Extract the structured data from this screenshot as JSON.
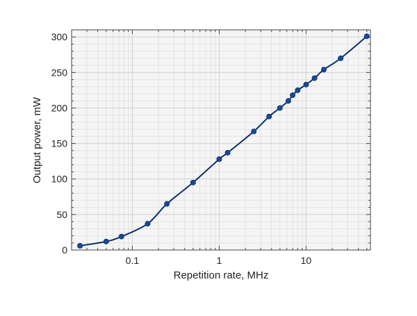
{
  "chart_data": {
    "type": "line",
    "title": "",
    "xlabel": "Repetition rate, MHz",
    "ylabel": "Output power, mW",
    "x_scale": "log",
    "xlim": [
      0.02,
      55
    ],
    "ylim": [
      0,
      310
    ],
    "x_ticks": [
      {
        "value": 0.1,
        "label": "0.1"
      },
      {
        "value": 1,
        "label": "1"
      },
      {
        "value": 10,
        "label": "10"
      }
    ],
    "y_ticks": [
      {
        "value": 0,
        "label": "0"
      },
      {
        "value": 50,
        "label": "50"
      },
      {
        "value": 100,
        "label": "100"
      },
      {
        "value": 150,
        "label": "150"
      },
      {
        "value": 200,
        "label": "200"
      },
      {
        "value": 250,
        "label": "250"
      },
      {
        "value": 300,
        "label": "300"
      }
    ],
    "grid": true,
    "legend": "none",
    "colors": {
      "line": "#0b2f6e",
      "marker": "#174a96",
      "plot_background": "#f5f5f5",
      "major_grid": "#cfcfcf",
      "minor_grid": "#e3e3e3",
      "frame": "#444444"
    },
    "series": [
      {
        "x": [
          0.025,
          0.05,
          0.075,
          0.15,
          0.25,
          0.5,
          1,
          1.25,
          2.5,
          3.75,
          5,
          6.25,
          7,
          8,
          10,
          12.5,
          16,
          25,
          50
        ],
        "y": [
          6,
          12,
          19,
          37,
          65,
          95,
          128,
          137,
          167,
          188,
          200,
          210,
          218,
          225,
          233,
          242,
          254,
          270,
          301
        ]
      }
    ]
  }
}
